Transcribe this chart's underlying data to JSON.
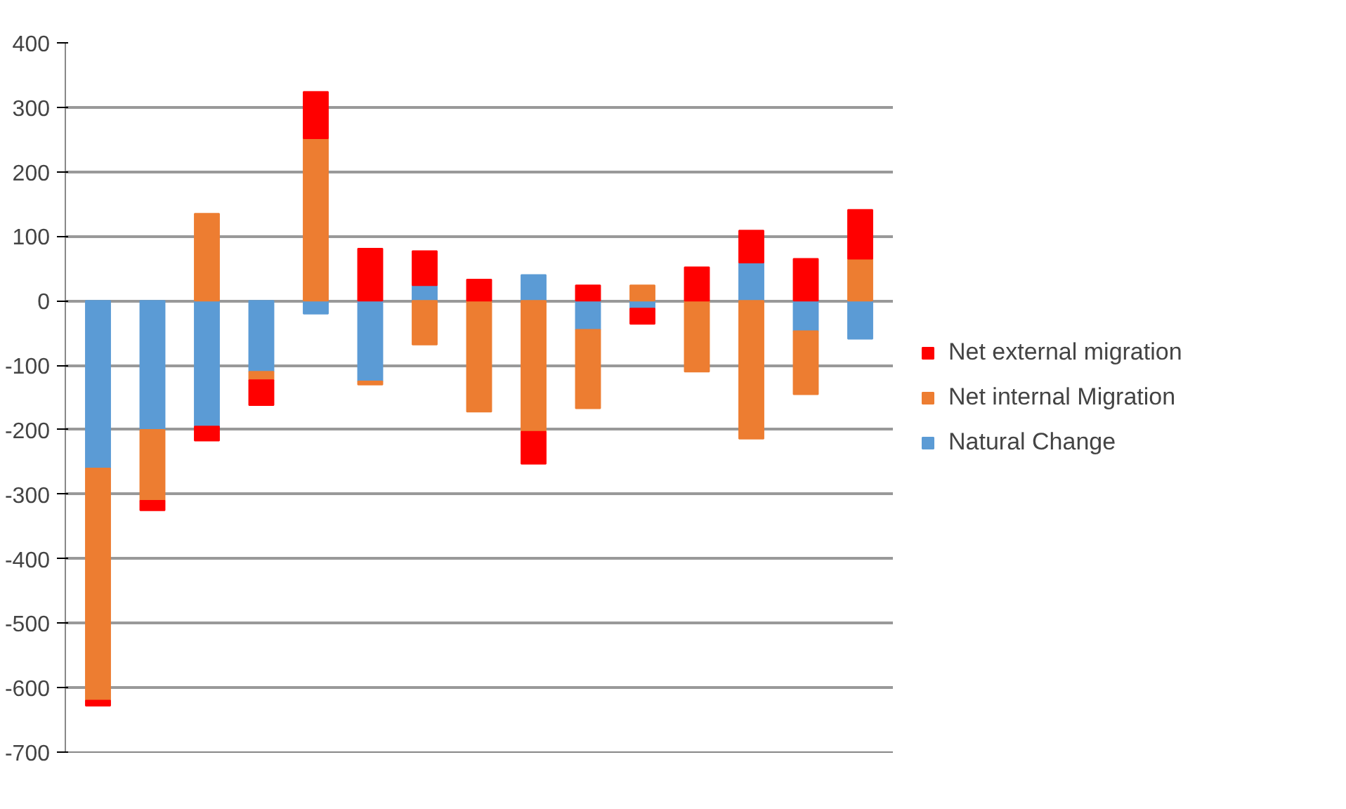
{
  "chart_data": {
    "type": "bar",
    "stacked": true,
    "categories": [
      null,
      null,
      null,
      null,
      null,
      null,
      null,
      null,
      null,
      null,
      null,
      null,
      null,
      null,
      null
    ],
    "series": [
      {
        "name": "Natural Change",
        "color": "#5b9bd5",
        "values": [
          -260,
          -200,
          -195,
          -110,
          -20,
          -125,
          24,
          null,
          40,
          -45,
          -12,
          null,
          59,
          -47,
          -59
        ]
      },
      {
        "name": "Net internal Migration",
        "color": "#ed7d31",
        "values": [
          -360,
          -110,
          135,
          -13,
          252,
          -5,
          -68,
          -172,
          -203,
          -122,
          24,
          -110,
          -214,
          -98,
          65
        ]
      },
      {
        "name": "Net external migration",
        "color": "#ff0000",
        "values": [
          -8,
          -15,
          -22,
          -39,
          72,
          81,
          53,
          33,
          -50,
          24,
          -24,
          52,
          50,
          65,
          76
        ]
      }
    ],
    "ylim": [
      -700,
      400
    ],
    "yticks": [
      -700,
      -600,
      -500,
      -400,
      -300,
      -200,
      -100,
      0,
      100,
      200,
      300,
      400
    ],
    "grid": "y",
    "legend": "right"
  }
}
